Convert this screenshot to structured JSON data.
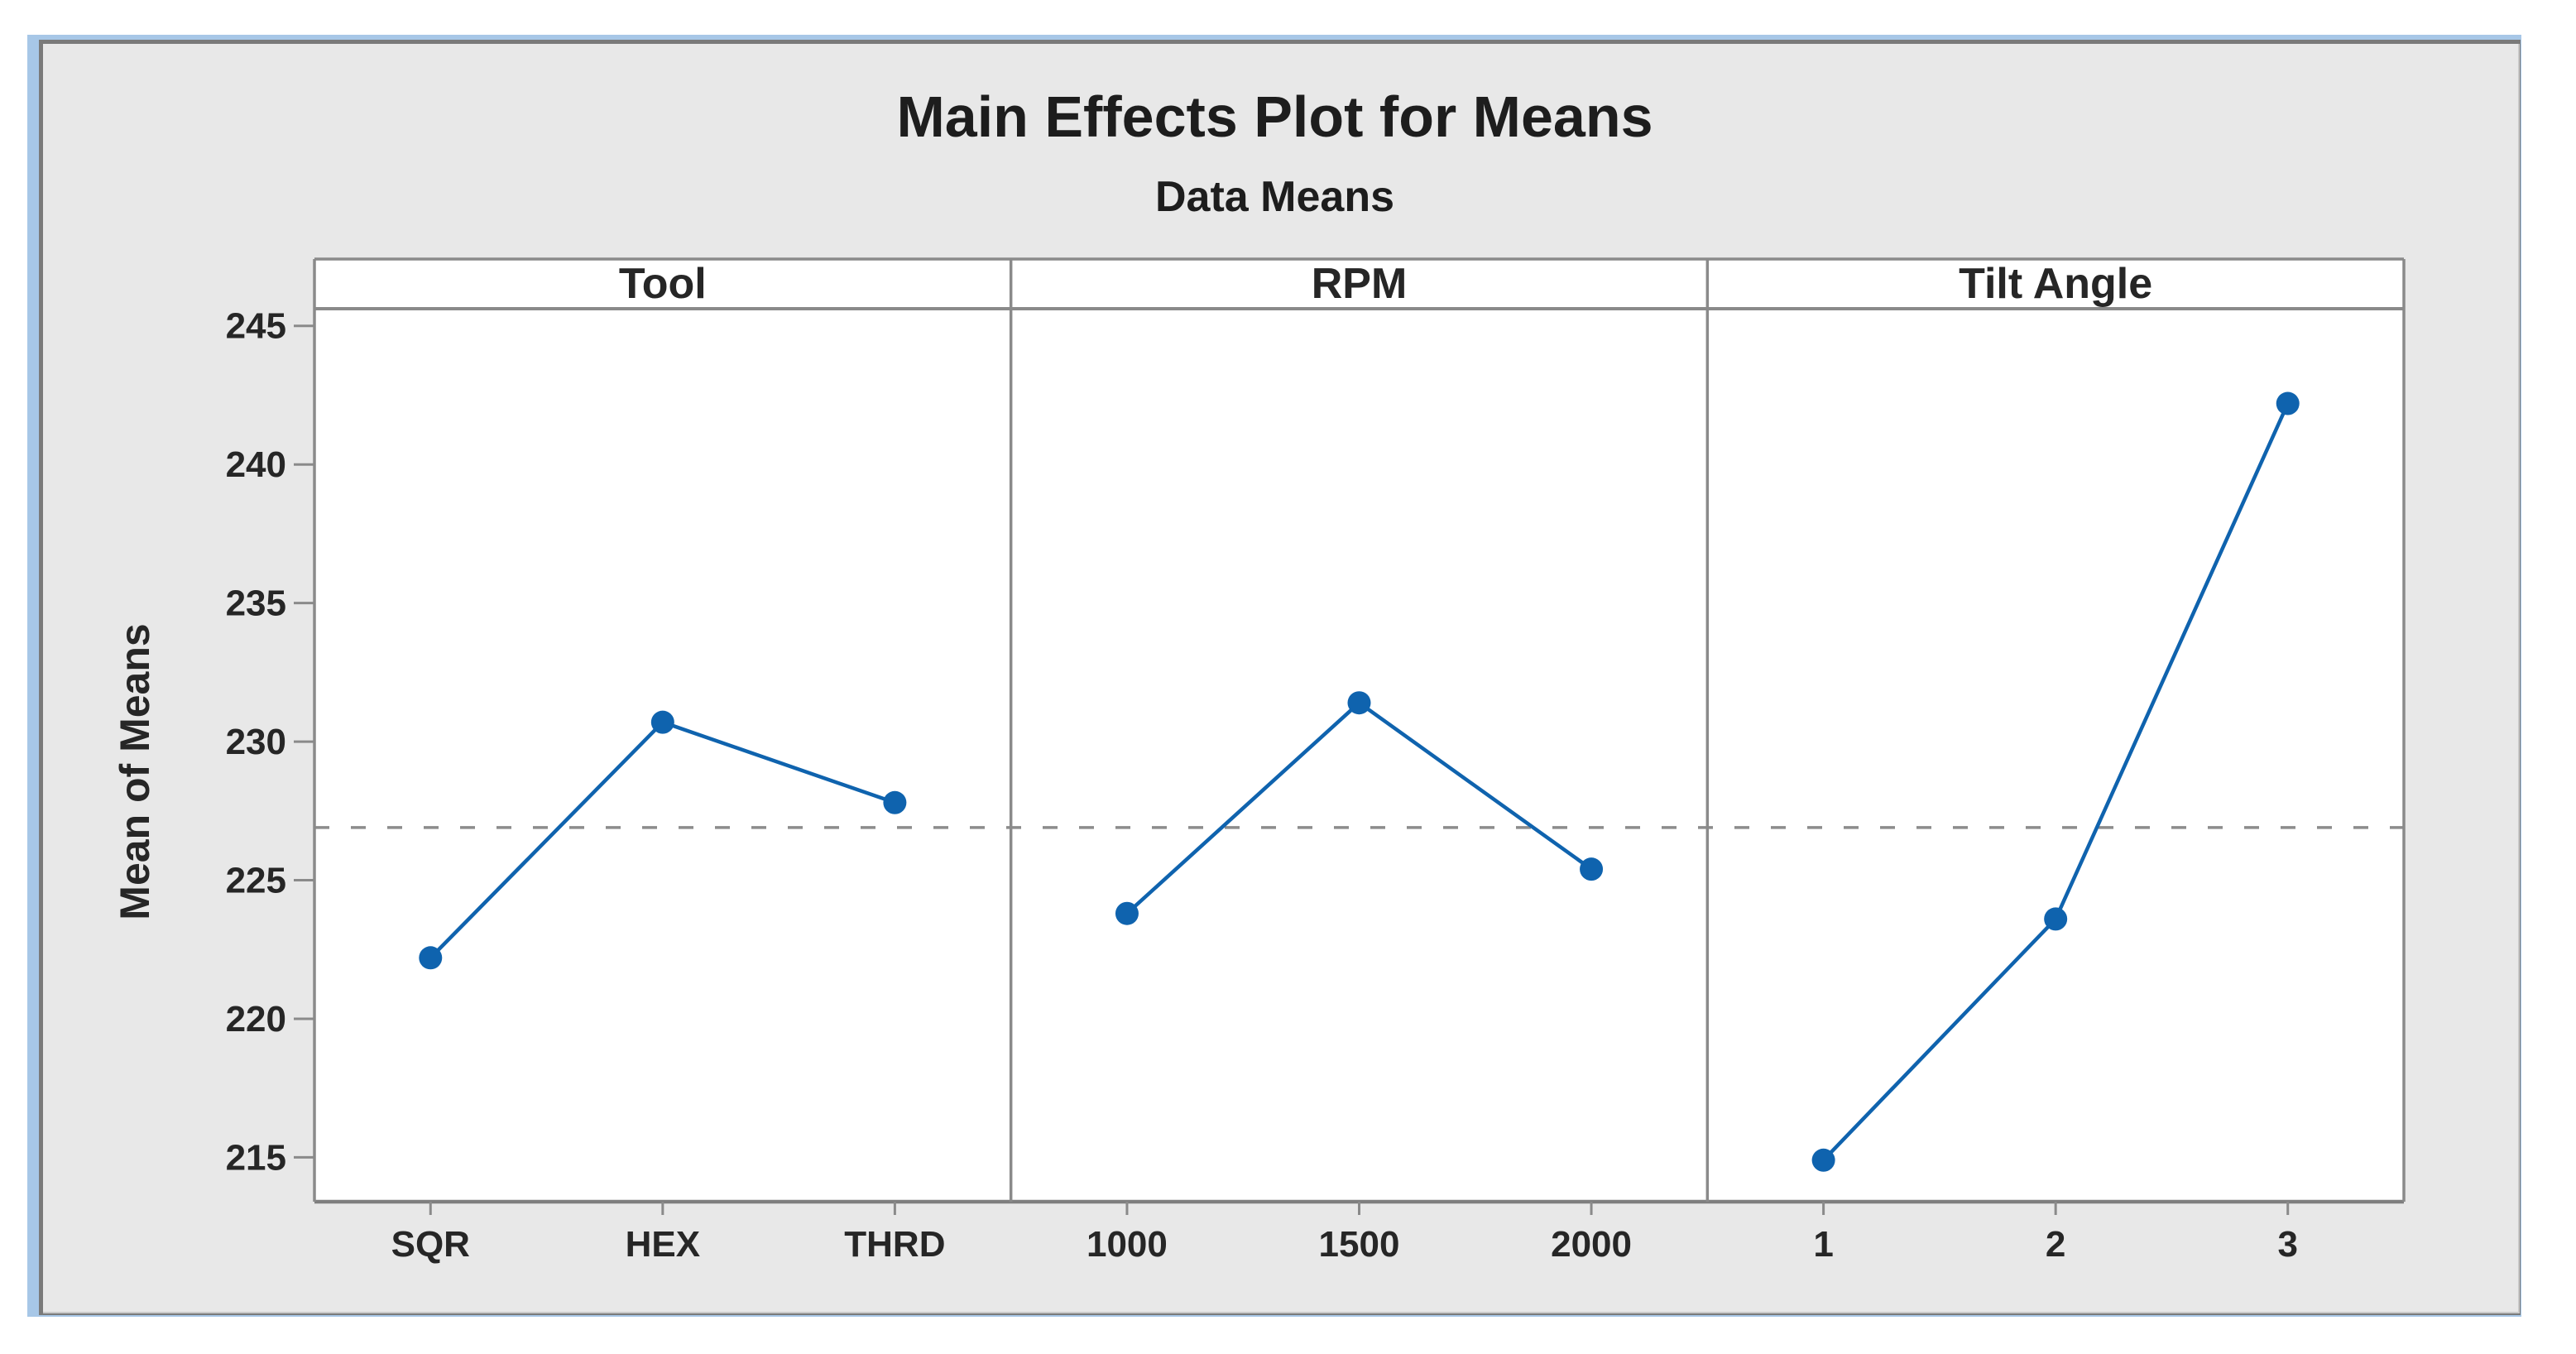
{
  "graph_window": {
    "title": "Main Effects Plot for Means",
    "subtitle": "Data Means"
  },
  "chart_data": {
    "type": "line",
    "title": "Main Effects Plot for Means",
    "subtitle": "Data Means",
    "ylabel": "Mean of Means",
    "ylim": [
      213.4,
      245.5
    ],
    "yticks": [
      215,
      220,
      225,
      230,
      235,
      240,
      245
    ],
    "reference_line_mean": 226.9,
    "grid": false,
    "legend": "none",
    "panels": [
      {
        "label": "Tool",
        "categories": [
          "SQR",
          "HEX",
          "THRD"
        ],
        "values": [
          222.2,
          230.7,
          227.8
        ]
      },
      {
        "label": "RPM",
        "categories": [
          "1000",
          "1500",
          "2000"
        ],
        "values": [
          223.8,
          231.4,
          225.4
        ]
      },
      {
        "label": "Tilt Angle",
        "categories": [
          "1",
          "2",
          "3"
        ],
        "values": [
          214.9,
          223.6,
          242.2
        ]
      }
    ],
    "colors": {
      "series": "#0f63ae",
      "reference_line": "#8c8c8c",
      "frame_lines": "#8a8a8a",
      "plot_background": "#ffffff",
      "graph_background": "#e8e8e8",
      "window_border_outer": "#a7c7e7",
      "window_border_inner": "#7a7a7a",
      "text": "#262626"
    }
  }
}
